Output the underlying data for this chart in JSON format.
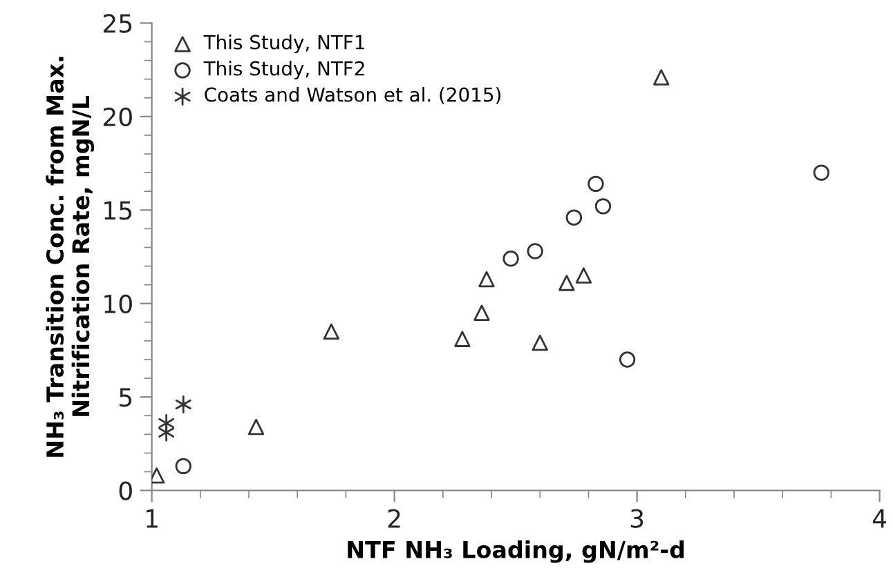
{
  "chart_data": {
    "type": "scatter",
    "xlabel": "NTF NH₃ Loading, gN/m²-d",
    "ylabel": "NH₃ Transition Conc. from Max.\nNitrification Rate, mgN/L",
    "xlim": [
      1,
      4
    ],
    "ylim": [
      0,
      25
    ],
    "xticks": [
      1,
      2,
      3,
      4
    ],
    "yticks": [
      0,
      5,
      10,
      15,
      20,
      25
    ],
    "grid": false,
    "legend": "top left",
    "series": [
      {
        "name": "This Study, NTF1",
        "color": "#333333",
        "marker": "triangle",
        "x": [
          1.02,
          1.43,
          1.74,
          2.28,
          2.36,
          2.38,
          2.6,
          2.71,
          2.78,
          3.1
        ],
        "values": [
          0.8,
          3.4,
          8.5,
          8.1,
          9.5,
          11.3,
          7.9,
          11.1,
          11.5,
          22.1
        ]
      },
      {
        "name": "This Study, NTF2",
        "color": "#333333",
        "marker": "circle",
        "x": [
          1.13,
          2.48,
          2.58,
          2.74,
          2.83,
          2.86,
          2.96,
          3.76
        ],
        "values": [
          1.3,
          12.4,
          12.8,
          14.6,
          16.4,
          15.2,
          7.0,
          17.0
        ]
      },
      {
        "name": "Coats and Watson et al. (2015)",
        "color": "#333333",
        "marker": "cross",
        "x": [
          1.06,
          1.06,
          1.13
        ],
        "values": [
          3.6,
          3.1,
          4.6
        ]
      }
    ]
  }
}
